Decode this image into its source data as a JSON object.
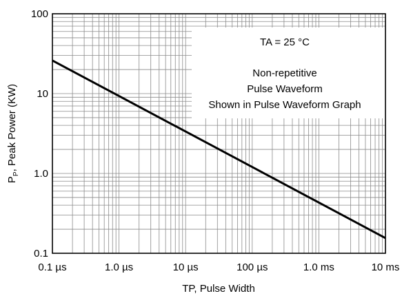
{
  "chart_data": {
    "type": "line",
    "title": "",
    "xlabel": "TP, Pulse Width",
    "ylabel_main": "P",
    "ylabel_sub": "P",
    "ylabel_rest": ", Peak Power (KW)",
    "x_scale": "log",
    "y_scale": "log",
    "xlim": [
      1e-07,
      0.01
    ],
    "ylim": [
      0.1,
      100
    ],
    "x_ticks": [
      1e-07,
      1e-06,
      1e-05,
      0.0001,
      0.001,
      0.01
    ],
    "x_tick_labels": [
      "0.1 µs",
      "1.0 µs",
      "10 µs",
      "100 µs",
      "1.0 ms",
      "10 ms"
    ],
    "y_ticks": [
      0.1,
      1,
      10,
      100
    ],
    "y_tick_labels": [
      "0.1",
      "1.0",
      "10",
      "100"
    ],
    "grid": "on (major and minor decades)",
    "annotation": {
      "line1": "TA = 25 °C",
      "line2": "Non-repetitive",
      "line3": "Pulse Waveform",
      "line4": "Shown in Pulse Waveform Graph"
    },
    "series": [
      {
        "x": [
          1e-07,
          0.01
        ],
        "y": [
          26,
          0.155
        ]
      }
    ]
  }
}
